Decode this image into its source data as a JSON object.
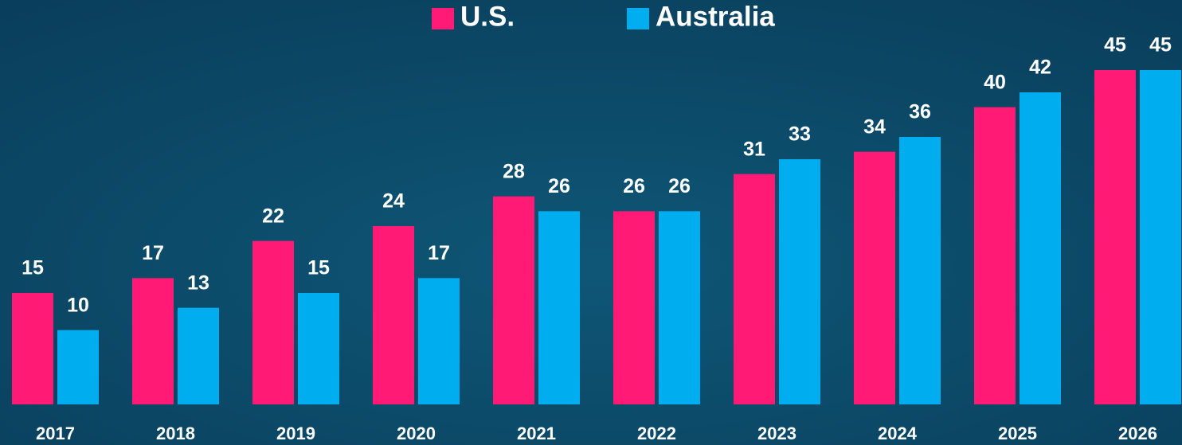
{
  "chart_data": {
    "type": "bar",
    "categories": [
      "2017",
      "2018",
      "2019",
      "2020",
      "2021",
      "2022",
      "2023",
      "2024",
      "2025",
      "2026"
    ],
    "series": [
      {
        "name": "U.S.",
        "color": "#ff1a75",
        "values": [
          15,
          17,
          22,
          24,
          28,
          26,
          31,
          34,
          40,
          45
        ]
      },
      {
        "name": "Australia",
        "color": "#00aeef",
        "values": [
          10,
          13,
          15,
          17,
          26,
          26,
          33,
          36,
          42,
          45
        ]
      }
    ]
  }
}
